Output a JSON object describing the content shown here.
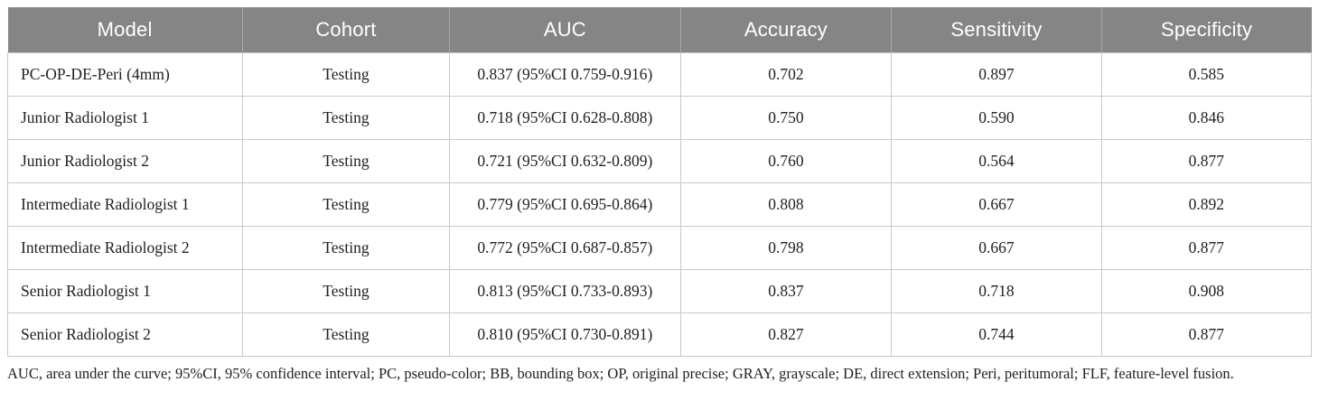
{
  "table": {
    "headers": {
      "model": "Model",
      "cohort": "Cohort",
      "auc": "AUC",
      "accuracy": "Accuracy",
      "sensitivity": "Sensitivity",
      "specificity": "Specificity"
    },
    "rows": [
      {
        "model": "PC-OP-DE-Peri (4mm)",
        "cohort": "Testing",
        "auc": "0.837 (95%CI 0.759-0.916)",
        "accuracy": "0.702",
        "sensitivity": "0.897",
        "specificity": "0.585"
      },
      {
        "model": "Junior Radiologist 1",
        "cohort": "Testing",
        "auc": "0.718 (95%CI 0.628-0.808)",
        "accuracy": "0.750",
        "sensitivity": "0.590",
        "specificity": "0.846"
      },
      {
        "model": "Junior Radiologist 2",
        "cohort": "Testing",
        "auc": "0.721 (95%CI 0.632-0.809)",
        "accuracy": "0.760",
        "sensitivity": "0.564",
        "specificity": "0.877"
      },
      {
        "model": "Intermediate Radiologist 1",
        "cohort": "Testing",
        "auc": "0.779 (95%CI 0.695-0.864)",
        "accuracy": "0.808",
        "sensitivity": "0.667",
        "specificity": "0.892"
      },
      {
        "model": "Intermediate Radiologist 2",
        "cohort": "Testing",
        "auc": "0.772 (95%CI 0.687-0.857)",
        "accuracy": "0.798",
        "sensitivity": "0.667",
        "specificity": "0.877"
      },
      {
        "model": "Senior Radiologist 1",
        "cohort": "Testing",
        "auc": "0.813 (95%CI 0.733-0.893)",
        "accuracy": "0.837",
        "sensitivity": "0.718",
        "specificity": "0.908"
      },
      {
        "model": "Senior Radiologist 2",
        "cohort": "Testing",
        "auc": "0.810 (95%CI 0.730-0.891)",
        "accuracy": "0.827",
        "sensitivity": "0.744",
        "specificity": "0.877"
      }
    ]
  },
  "footnote": {
    "text": "AUC, area under the curve; 95%CI, 95% confidence interval; PC, pseudo-color; BB, bounding box; OP, original precise; GRAY, grayscale; DE, direct extension; Peri, peritumoral; FLF, feature-level fusion."
  },
  "colors": {
    "header_bg": "#858585",
    "header_text": "#ffffff",
    "border": "#c9c9c9",
    "body_text": "#1f1f1f"
  }
}
